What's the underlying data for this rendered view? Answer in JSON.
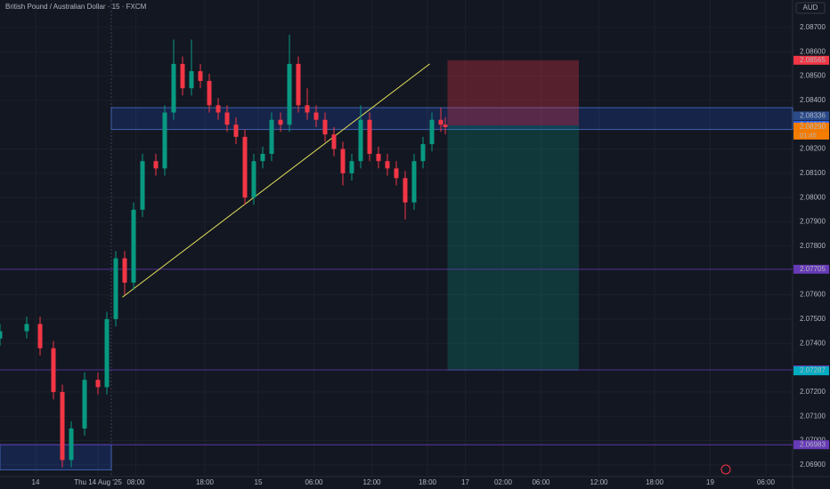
{
  "chart_data": {
    "type": "candlestick",
    "title": "British Pound / Australian Dollar · 15 · FXCM",
    "currency": "AUD",
    "countdown": "01:45",
    "up_color": "#089981",
    "down_color": "#f23645",
    "grid": true,
    "xlim": [
      0,
      356
    ],
    "ylim": [
      2.06852,
      2.08813
    ],
    "x": [
      0,
      12,
      18,
      24,
      28,
      32,
      38,
      44,
      48,
      52,
      56,
      60,
      64,
      70,
      74,
      78,
      82,
      86,
      90,
      94,
      98,
      102,
      106,
      110,
      114,
      118,
      122,
      126,
      130,
      134,
      138,
      142,
      146,
      150,
      154,
      158,
      162,
      166,
      170,
      174,
      178,
      182,
      186,
      190,
      194,
      198,
      200
    ],
    "series": [
      {
        "name": "open",
        "values": [
          2.0742,
          2.0745,
          2.0748,
          2.0738,
          2.072,
          2.0692,
          2.0705,
          2.0725,
          2.0722,
          2.075,
          2.0775,
          2.0765,
          2.0795,
          2.0815,
          2.0812,
          2.0835,
          2.0855,
          2.0845,
          2.0852,
          2.0848,
          2.0838,
          2.0835,
          2.083,
          2.0825,
          2.08,
          2.0815,
          2.0818,
          2.0832,
          2.083,
          2.0855,
          2.0838,
          2.0835,
          2.0832,
          2.0826,
          2.082,
          2.081,
          2.0815,
          2.0832,
          2.0818,
          2.0815,
          2.0812,
          2.0808,
          2.0798,
          2.0815,
          2.0822,
          2.0832,
          2.083
        ]
      },
      {
        "name": "high",
        "values": [
          2.0748,
          2.0751,
          2.0751,
          2.0741,
          2.0723,
          2.0708,
          2.0728,
          2.0728,
          2.0753,
          2.0778,
          2.0778,
          2.0798,
          2.0818,
          2.0818,
          2.0838,
          2.0865,
          2.0858,
          2.0865,
          2.0855,
          2.0851,
          2.0841,
          2.0838,
          2.0833,
          2.0828,
          2.0818,
          2.0821,
          2.0835,
          2.0835,
          2.0867,
          2.0858,
          2.0845,
          2.0838,
          2.0835,
          2.0829,
          2.0823,
          2.0818,
          2.0838,
          2.0835,
          2.0821,
          2.0818,
          2.0815,
          2.0811,
          2.0818,
          2.0825,
          2.0835,
          2.0837,
          2.0833
        ]
      },
      {
        "name": "low",
        "values": [
          2.0739,
          2.0742,
          2.0735,
          2.0717,
          2.0689,
          2.0689,
          2.0702,
          2.0719,
          2.0719,
          2.0747,
          2.076,
          2.0762,
          2.0792,
          2.0809,
          2.0809,
          2.0832,
          2.0842,
          2.0842,
          2.0845,
          2.0835,
          2.0832,
          2.0827,
          2.0822,
          2.0797,
          2.0797,
          2.0812,
          2.0815,
          2.0827,
          2.0827,
          2.0835,
          2.0832,
          2.0829,
          2.0823,
          2.0817,
          2.0805,
          2.0807,
          2.0812,
          2.0815,
          2.0812,
          2.0809,
          2.0805,
          2.0791,
          2.0795,
          2.0812,
          2.0819,
          2.0827,
          2.0826
        ]
      },
      {
        "name": "close",
        "values": [
          2.0745,
          2.0748,
          2.0738,
          2.072,
          2.0692,
          2.0705,
          2.0725,
          2.0722,
          2.075,
          2.0775,
          2.0765,
          2.0795,
          2.0815,
          2.0812,
          2.0835,
          2.0855,
          2.0845,
          2.0852,
          2.0848,
          2.0838,
          2.0835,
          2.083,
          2.0825,
          2.08,
          2.0815,
          2.0818,
          2.0832,
          2.083,
          2.0855,
          2.0838,
          2.0835,
          2.0832,
          2.0826,
          2.082,
          2.081,
          2.0815,
          2.0832,
          2.0818,
          2.0815,
          2.0812,
          2.0808,
          2.0798,
          2.0815,
          2.0822,
          2.0832,
          2.083,
          2.0829
        ]
      }
    ],
    "yticks": [
      {
        "value": 2.087,
        "label": "2.08700"
      },
      {
        "value": 2.086,
        "label": "2.08600"
      },
      {
        "value": 2.085,
        "label": "2.08500"
      },
      {
        "value": 2.084,
        "label": "2.08400"
      },
      {
        "value": 2.082,
        "label": "2.08200"
      },
      {
        "value": 2.081,
        "label": "2.08100"
      },
      {
        "value": 2.08,
        "label": "2.08000"
      },
      {
        "value": 2.079,
        "label": "2.07900"
      },
      {
        "value": 2.078,
        "label": "2.07800"
      },
      {
        "value": 2.076,
        "label": "2.07600"
      },
      {
        "value": 2.075,
        "label": "2.07500"
      },
      {
        "value": 2.074,
        "label": "2.07400"
      },
      {
        "value": 2.072,
        "label": "2.07200"
      },
      {
        "value": 2.071,
        "label": "2.07100"
      },
      {
        "value": 2.07,
        "label": "2.07000"
      },
      {
        "value": 2.069,
        "label": "2.06900"
      }
    ],
    "xticks": [
      {
        "value": 16,
        "label": "14"
      },
      {
        "value": 44,
        "label": "Thu 14 Aug '25"
      },
      {
        "value": 61,
        "label": "08:00"
      },
      {
        "value": 92,
        "label": "18:00"
      },
      {
        "value": 116,
        "label": "15"
      },
      {
        "value": 141,
        "label": "06:00"
      },
      {
        "value": 167,
        "label": "12:00"
      },
      {
        "value": 192,
        "label": "18:00"
      },
      {
        "value": 209,
        "label": "17"
      },
      {
        "value": 226,
        "label": "02:00"
      },
      {
        "value": 243,
        "label": "06:00"
      },
      {
        "value": 269,
        "label": "12:00"
      },
      {
        "value": 294,
        "label": "18:00"
      },
      {
        "value": 319,
        "label": "19"
      },
      {
        "value": 344,
        "label": "06:00"
      }
    ],
    "levels": [
      {
        "value": 2.08565,
        "label": "2.08565",
        "color": "#f23645",
        "line": false
      },
      {
        "value": 2.08336,
        "label": "2.08336",
        "color": "#2a4a8a",
        "line": false
      },
      {
        "value": 2.08297,
        "label": "2.08297",
        "color": "#2962ff",
        "line": false
      },
      {
        "value": 2.0829,
        "label": "2.08290",
        "color": "#f57c00",
        "line": false
      },
      {
        "value": 2.07705,
        "label": "2.07705",
        "color": "#673ab7",
        "line": true
      },
      {
        "value": 2.07291,
        "label": "2.07291",
        "color": "#673ab7",
        "line": true
      },
      {
        "value": 2.07287,
        "label": "2.07287",
        "color": "#00acc1",
        "line": false
      },
      {
        "value": 2.06983,
        "label": "2.06983",
        "color": "#673ab7",
        "line": true
      }
    ],
    "zones": [
      {
        "x": [
          50,
          356
        ],
        "y": [
          2.0837,
          2.0828
        ]
      },
      {
        "x": [
          0,
          50
        ],
        "y": [
          2.06983,
          2.0688
        ]
      }
    ],
    "trendline": {
      "x": [
        55,
        193
      ],
      "y": [
        2.0759,
        2.0855
      ],
      "color": "#e5e15a"
    },
    "position": {
      "x": [
        201,
        260
      ],
      "entry": 2.08297,
      "stop": 2.08565,
      "target": 2.07287
    }
  }
}
